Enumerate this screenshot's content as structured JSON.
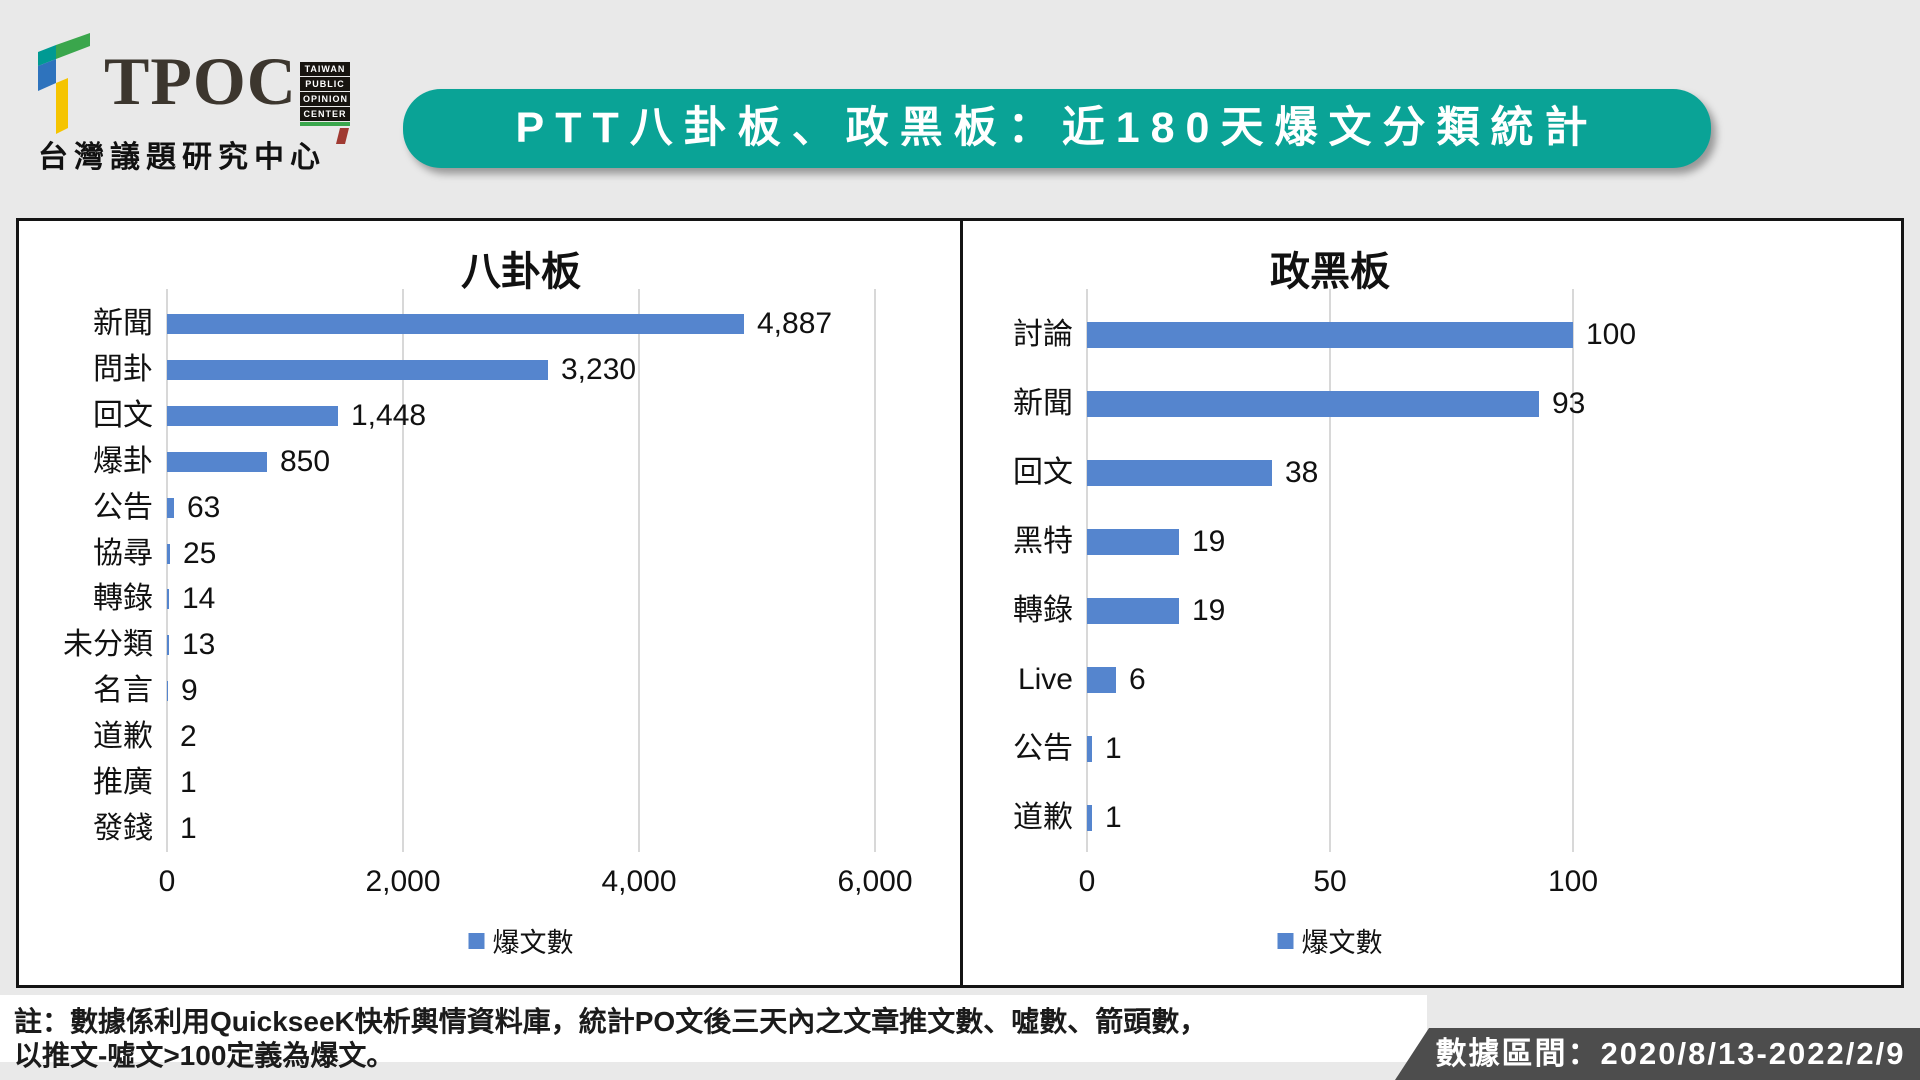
{
  "header": {
    "logo": {
      "brand": "TPOC",
      "badge_lines": [
        "TAIWAN",
        "PUBLIC",
        "OPINION",
        "CENTER"
      ],
      "subtitle": "台灣議題研究中心"
    },
    "title": "PTT八卦板、政黑板：近180天爆文分類統計"
  },
  "colors": {
    "accent_teal": "#0aa396",
    "bar_blue": "#5585CE",
    "gridline": "#d8d8d8",
    "footer_banner": "#4d4d4d"
  },
  "chart_data": [
    {
      "type": "bar",
      "orientation": "horizontal",
      "title": "八卦板",
      "categories": [
        "新聞",
        "問卦",
        "回文",
        "爆卦",
        "公告",
        "協尋",
        "轉錄",
        "未分類",
        "名言",
        "道歉",
        "推廣",
        "發錢"
      ],
      "values": [
        4887,
        3230,
        1448,
        850,
        63,
        25,
        14,
        13,
        9,
        2,
        1,
        1
      ],
      "value_labels": [
        "4,887",
        "3,230",
        "1,448",
        "850",
        "63",
        "25",
        "14",
        "13",
        "9",
        "2",
        "1",
        "1"
      ],
      "xlim": [
        0,
        6000
      ],
      "xticks": [
        0,
        2000,
        4000,
        6000
      ],
      "xtick_labels": [
        "0",
        "2,000",
        "4,000",
        "6,000"
      ],
      "legend": "爆文數",
      "grid": true,
      "legend_position": "bottom-center"
    },
    {
      "type": "bar",
      "orientation": "horizontal",
      "title": "政黑板",
      "categories": [
        "討論",
        "新聞",
        "回文",
        "黑特",
        "轉錄",
        "Live",
        "公告",
        "道歉"
      ],
      "values": [
        100,
        93,
        38,
        19,
        19,
        6,
        1,
        1
      ],
      "value_labels": [
        "100",
        "93",
        "38",
        "19",
        "19",
        "6",
        "1",
        "1"
      ],
      "xlim": [
        0,
        100
      ],
      "xticks": [
        0,
        50,
        100
      ],
      "xtick_labels": [
        "0",
        "50",
        "100"
      ],
      "legend": "爆文數",
      "grid": true,
      "legend_position": "bottom-center"
    }
  ],
  "footer": {
    "note_line1": "註：數據係利用QuickseeK快析輿情資料庫，統計PO文後三天內之文章推文數、噓數、箭頭數，",
    "note_line2": "以推文-噓文>100定義為爆文。",
    "period_label": "數據區間：2020/8/13-2022/2/9"
  }
}
